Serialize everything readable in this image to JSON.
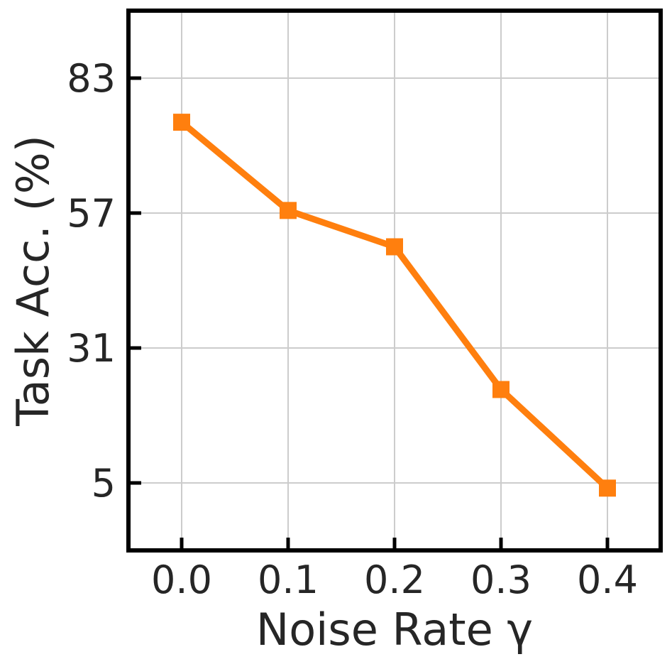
{
  "chart_data": {
    "type": "line",
    "title": "",
    "xlabel": "Noise Rate γ",
    "ylabel": "Task Acc. (%)",
    "x": [
      0.0,
      0.1,
      0.2,
      0.3,
      0.4
    ],
    "x_tick_labels": [
      "0.0",
      "0.1",
      "0.2",
      "0.3",
      "0.4"
    ],
    "y_ticks": [
      5,
      31,
      57,
      83
    ],
    "y_tick_labels": [
      "5",
      "31",
      "57",
      "83"
    ],
    "xlim": [
      -0.05,
      0.45
    ],
    "ylim": [
      -8,
      96
    ],
    "grid": true,
    "series": [
      {
        "color": "#ff7f0e",
        "marker": "square",
        "values": [
          74.5,
          57.5,
          50.5,
          23,
          4
        ]
      }
    ]
  }
}
